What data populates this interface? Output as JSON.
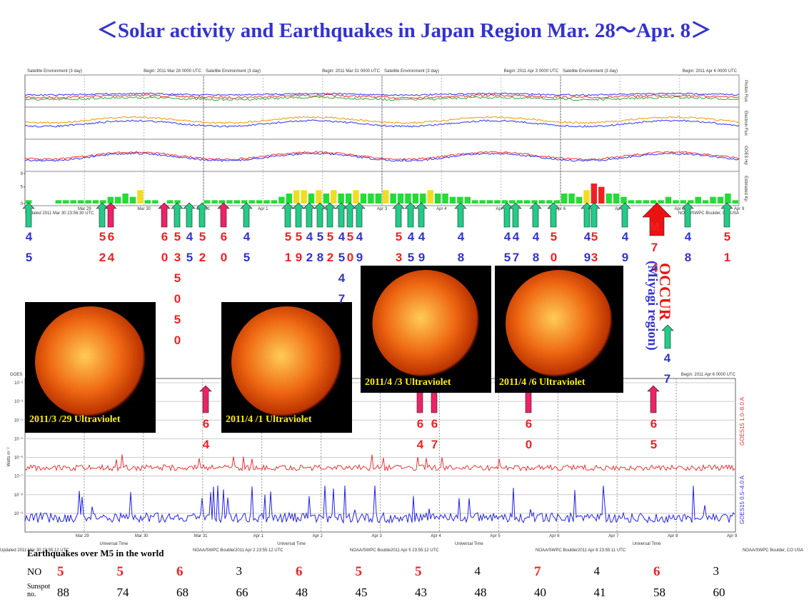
{
  "title": "＜Solar activity and Earthquakes in Japan Region Mar. 28～Apr. 8＞",
  "top_panel": {
    "headers": [
      "Satellite Environment (3 day)",
      "Satellite Environment (3 day)",
      "Satellite Environment (3 day)",
      "Satellite Environment (3 day)"
    ],
    "begins": [
      "Begin: 2011 Mar 28 0000 UTC",
      "Begin: 2011 Mar 31 0000 UTC",
      "Begin: 2011 Apr 3 0000 UTC",
      "Begin: 2011 Apr 6 0000 UTC"
    ],
    "row_labels": [
      "Proton Flux",
      "Electron Flux",
      "GOES Hp",
      "Estimated Kp"
    ],
    "dates": [
      "Mar 29",
      "Mar 30",
      "Mar 31",
      "Apr 1",
      "Apr 2",
      "Apr 3",
      "Apr 4",
      "Apr 5",
      "Apr 6",
      "Apr 7",
      "Apr 8",
      "Apr 9"
    ],
    "updated": "Updated 2011 Mar 30 23:56:30 UTC",
    "credit": "NOAA/SWPC Boulder, CO USA",
    "kp": {
      "ylim": [
        0,
        9
      ],
      "yticks": [
        0,
        5,
        9
      ],
      "thresholds": [
        4,
        5
      ],
      "colors": [
        "#22dd33",
        "#eedd22",
        "#ee2222"
      ],
      "values": [
        1,
        0,
        0,
        0,
        1,
        1,
        1,
        1,
        1,
        1,
        1,
        2,
        2,
        3,
        2,
        4,
        1,
        1,
        0,
        1,
        1,
        0,
        0,
        0,
        1,
        1,
        1,
        1,
        1,
        1,
        1,
        1,
        1,
        1,
        2,
        3,
        4,
        4,
        3,
        4,
        3,
        4,
        3,
        3,
        4,
        3,
        3,
        3,
        4,
        3,
        3,
        3,
        3,
        3,
        4,
        3,
        3,
        2,
        2,
        2,
        1,
        1,
        1,
        1,
        1,
        1,
        1,
        1,
        1,
        1,
        1,
        1,
        3,
        3,
        2,
        4,
        6,
        5,
        3,
        3,
        2,
        1,
        1,
        1,
        1,
        1,
        2,
        1,
        1,
        1,
        2,
        1,
        2,
        2,
        3,
        1
      ]
    }
  },
  "arrows": [
    {
      "label": "45",
      "color": "green",
      "label_color": "blue"
    },
    {
      "label": "52",
      "color": "green",
      "label_color": "red"
    },
    {
      "label": "64",
      "color": "red",
      "label_color": "red"
    },
    {
      "label": "60",
      "color": "red",
      "label_color": "red"
    },
    {
      "label": "535050",
      "color": "green",
      "label_color": "red"
    },
    {
      "label": "45",
      "color": "green",
      "label_color": "blue"
    },
    {
      "label": "52",
      "color": "green",
      "label_color": "red"
    },
    {
      "label": "60",
      "color": "red",
      "label_color": "red"
    },
    {
      "label": "45",
      "color": "green",
      "label_color": "blue"
    },
    {
      "label": "51",
      "color": "green",
      "label_color": "red"
    },
    {
      "label": "59",
      "color": "green",
      "label_color": "red"
    },
    {
      "label": "42",
      "color": "green",
      "label_color": "blue"
    },
    {
      "label": "58",
      "color": "green",
      "label_color": "blue"
    },
    {
      "label": "52",
      "color": "green",
      "label_color": "red"
    },
    {
      "label": "4547",
      "color": "green",
      "label_color": "blue"
    },
    {
      "label": "50",
      "color": "green",
      "label_color": "red"
    },
    {
      "label": "49",
      "color": "green",
      "label_color": "blue"
    },
    {
      "label": "53",
      "color": "green",
      "label_color": "red"
    },
    {
      "label": "45",
      "color": "green",
      "label_color": "blue"
    },
    {
      "label": "49",
      "color": "green",
      "label_color": "blue"
    },
    {
      "label": "48",
      "color": "green",
      "label_color": "blue"
    },
    {
      "label": "45",
      "color": "green",
      "label_color": "blue"
    },
    {
      "label": "47",
      "color": "green",
      "label_color": "blue"
    },
    {
      "label": "48",
      "color": "green",
      "label_color": "blue"
    },
    {
      "label": "50",
      "color": "green",
      "label_color": "red"
    },
    {
      "label": "49",
      "color": "green",
      "label_color": "blue"
    },
    {
      "label": "53",
      "color": "green",
      "label_color": "red"
    },
    {
      "label": "49",
      "color": "green",
      "label_color": "blue"
    },
    {
      "label": "48",
      "color": "green",
      "label_color": "blue"
    },
    {
      "label": "51",
      "color": "green",
      "label_color": "red"
    }
  ],
  "big_event": {
    "label": "M74",
    "occur": "OCCUR",
    "region": "(Miyagi region)",
    "after": "47"
  },
  "lower_arrows": [
    {
      "label": "64"
    },
    {
      "label": "64"
    },
    {
      "label": "67"
    },
    {
      "label": "60"
    },
    {
      "label": "65"
    }
  ],
  "images": [
    "2011/3 /29  Ultraviolet",
    "2011/4 /1  Ultraviolet",
    "2011/4 /3  Ultraviolet",
    "2011/4 /6  Ultraviolet"
  ],
  "xray_panel": {
    "header": "GOES",
    "begin": "Begin:  2011 Apr 6 0000 UTC",
    "ylabel": "Watts m⁻²",
    "yticks": [
      "10⁻²",
      "10⁻³",
      "10⁻⁴",
      "10⁻⁵",
      "10⁻⁶",
      "10⁻⁷",
      "10⁻⁸",
      "10⁻⁹"
    ],
    "right_labels": [
      "GOES15 1.0–8.0 A",
      "GOES15 0.5–4.0 A"
    ],
    "dates": [
      "Mar 29",
      "Mar 30",
      "Mar 31",
      "Apr 1",
      "Apr 2",
      "Apr 3",
      "Apr 4",
      "Apr 5",
      "Apr 6",
      "Apr 7",
      "Apr 8",
      "Apr 9"
    ],
    "axis_title": "Universal Time",
    "updates": [
      "Updated 2011 Mar 30 23:55:12 UTC",
      "NOAA/SWPC Boulder2011 Apr  2 23:55:12 UTC",
      "NOAA/SWPC Boulde2011 Apr  5 23:55:12 UTC",
      "NOAA/SWPC Boulder2011 Apr  8 23:55:11 UTC",
      "NOAA/SWPC Boulder, CO USA"
    ]
  },
  "table": {
    "title": "Earthquakes  over  M5  in the world",
    "row1_label": "NO",
    "row2_label": "Sunspot no.",
    "no": [
      5,
      5,
      6,
      3,
      6,
      5,
      5,
      4,
      7,
      4,
      6,
      3
    ],
    "sunspot": [
      88,
      74,
      68,
      66,
      48,
      45,
      43,
      48,
      40,
      41,
      58,
      60
    ],
    "highlight_min": 5
  }
}
